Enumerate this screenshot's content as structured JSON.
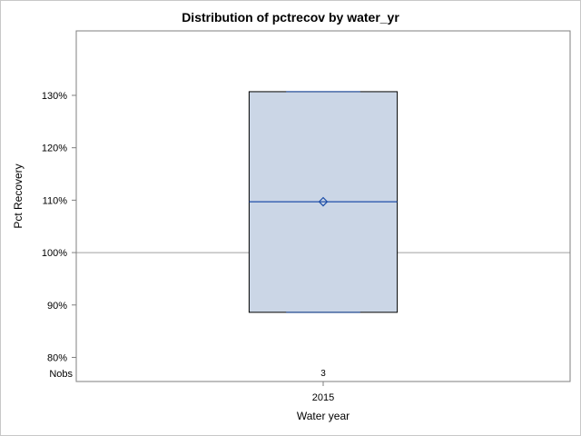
{
  "chart_data": {
    "type": "box",
    "title": "Distribution of pctrecov by water_yr",
    "xlabel": "Water year",
    "ylabel": "Pct Recovery",
    "ylim": [
      75.4,
      142.3
    ],
    "yticks": [
      80,
      90,
      100,
      110,
      120,
      130
    ],
    "ytick_labels": [
      "80%",
      "90%",
      "100%",
      "110%",
      "120%",
      "130%"
    ],
    "reference_line": 100,
    "categories": [
      "2015"
    ],
    "boxes": [
      {
        "category": "2015",
        "min": 88.6,
        "q1": 88.6,
        "median": 109.7,
        "mean": 109.7,
        "q3": 130.7,
        "max": 130.7,
        "nobs": "3"
      }
    ],
    "nobs_label": "Nobs",
    "grid": false
  },
  "colors": {
    "box_fill": "#cbd6e6",
    "box_edge": "#000000",
    "median_line": "#1f4fa8",
    "mean_marker": "#1f4fa8",
    "reference_line": "#a0a0a0",
    "axis": "#7f7f7f"
  }
}
